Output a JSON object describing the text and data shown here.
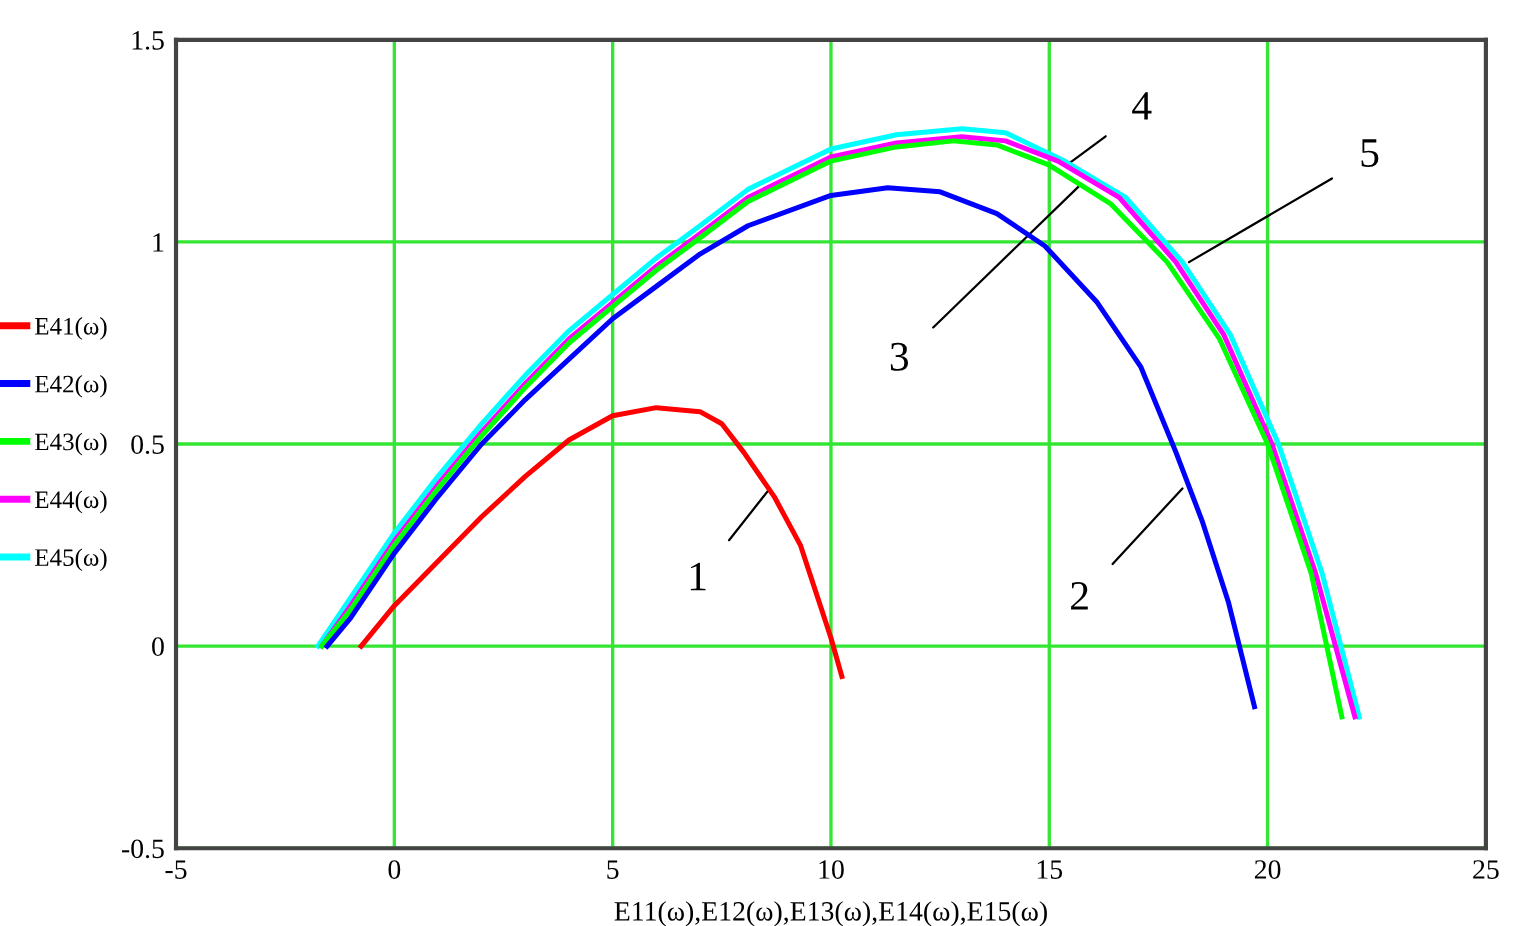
{
  "chart_data": {
    "type": "line",
    "xlabel": "E11(ω),E12(ω),E13(ω),E14(ω),E15(ω)",
    "xlim": [
      -5,
      25
    ],
    "xticks": [
      -5,
      0,
      5,
      10,
      15,
      20,
      25
    ],
    "ylim": [
      -0.5,
      1.5
    ],
    "yticks": [
      -0.5,
      0,
      0.5,
      1,
      1.5
    ],
    "grid": true,
    "legend": "left",
    "marker": "none",
    "line_style": "solid",
    "series": [
      {
        "name": "E41(ω)",
        "color": "#ff0000",
        "x": [
          -0.76,
          0,
          1,
          2,
          3,
          4,
          5,
          6,
          7,
          7.5,
          8,
          8.7,
          9.3,
          10,
          10.25
        ],
        "values": [
          0,
          0.1,
          0.21,
          0.32,
          0.42,
          0.51,
          0.57,
          0.59,
          0.58,
          0.55,
          0.48,
          0.37,
          0.25,
          0.02,
          -0.075
        ]
      },
      {
        "name": "E42(ω)",
        "color": "#0000ff",
        "x": [
          -1.54,
          -1,
          0,
          1,
          2,
          3,
          4,
          5,
          6,
          7,
          8.1,
          10,
          11.3,
          12.5,
          13.8,
          14.9,
          16.1,
          17.1,
          17.9,
          18.5,
          19.1,
          19.4,
          19.7
        ],
        "values": [
          0,
          0.07,
          0.23,
          0.37,
          0.5,
          0.61,
          0.71,
          0.81,
          0.89,
          0.97,
          1.04,
          1.115,
          1.134,
          1.124,
          1.07,
          0.99,
          0.85,
          0.69,
          0.48,
          0.31,
          0.11,
          -0.02,
          -0.15
        ]
      },
      {
        "name": "E43(ω)",
        "color": "#00ff00",
        "x": [
          -1.66,
          -1,
          0,
          1,
          2,
          3,
          4,
          5,
          6,
          7,
          8.1,
          10,
          11.5,
          12.8,
          13.8,
          15,
          16.4,
          17.7,
          18.9,
          20,
          21,
          21.7
        ],
        "values": [
          0,
          0.09,
          0.25,
          0.39,
          0.52,
          0.64,
          0.75,
          0.84,
          0.93,
          1.01,
          1.1,
          1.2,
          1.235,
          1.25,
          1.24,
          1.19,
          1.095,
          0.95,
          0.76,
          0.5,
          0.18,
          -0.175
        ]
      },
      {
        "name": "E44(ω)",
        "color": "#ff00ff",
        "x": [
          -1.66,
          -1,
          0,
          1,
          2,
          3,
          4,
          5,
          6,
          7,
          8.1,
          10,
          11.5,
          13,
          14,
          15.2,
          16.6,
          17.9,
          19,
          20.1,
          21.1,
          22
        ],
        "values": [
          0,
          0.1,
          0.26,
          0.4,
          0.53,
          0.65,
          0.76,
          0.85,
          0.94,
          1.02,
          1.11,
          1.21,
          1.245,
          1.26,
          1.25,
          1.2,
          1.11,
          0.95,
          0.77,
          0.5,
          0.18,
          -0.175
        ]
      },
      {
        "name": "E45(ω)",
        "color": "#00ffff",
        "x": [
          -1.75,
          -1,
          0,
          1,
          2,
          3,
          4,
          5,
          6,
          7,
          8.1,
          10,
          11.5,
          13,
          14,
          15.35,
          16.75,
          18.05,
          19.15,
          20.25,
          21.25,
          22.1
        ],
        "values": [
          0,
          0.12,
          0.28,
          0.42,
          0.55,
          0.67,
          0.78,
          0.87,
          0.96,
          1.04,
          1.13,
          1.23,
          1.265,
          1.28,
          1.27,
          1.2,
          1.11,
          0.95,
          0.77,
          0.5,
          0.18,
          -0.175
        ]
      }
    ],
    "annotations": [
      {
        "text": "1",
        "x": 8.6,
        "y": 0.39
      },
      {
        "text": "2",
        "x": 18.05,
        "y": 0.39
      },
      {
        "text": "3",
        "x": 15.7,
        "y": 1.14
      },
      {
        "text": "4",
        "x": 15.4,
        "y": 1.19
      },
      {
        "text": "5",
        "x": 18.2,
        "y": 0.95
      }
    ]
  }
}
